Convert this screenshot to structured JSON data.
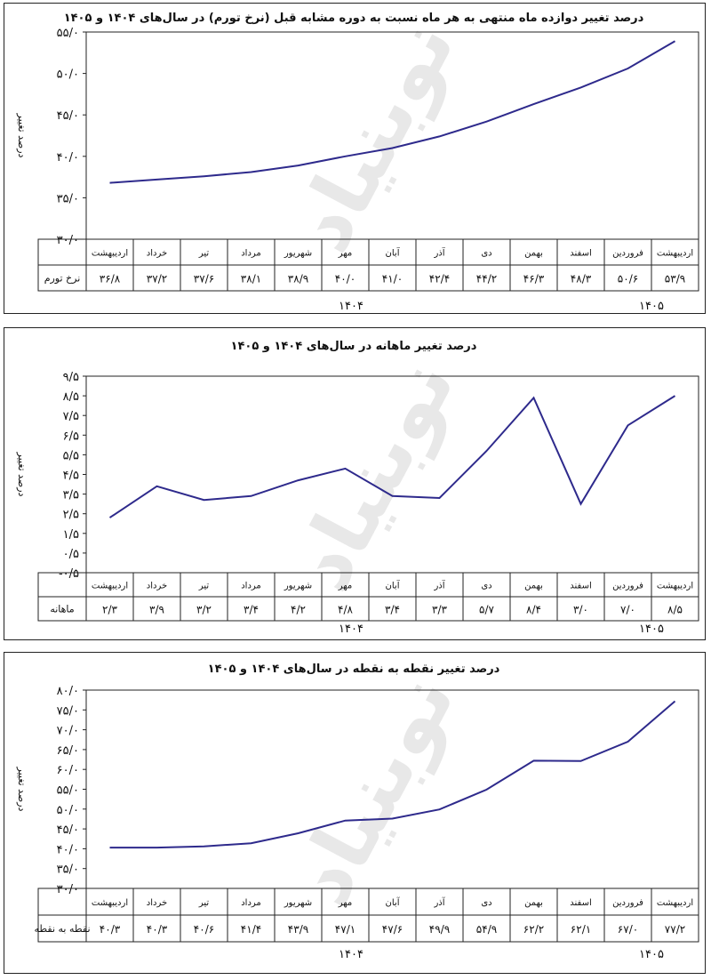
{
  "months": [
    "اردیبهشت",
    "خرداد",
    "تیر",
    "مرداد",
    "شهریور",
    "مهر",
    "آبان",
    "آذر",
    "دی",
    "بهمن",
    "اسفند",
    "فروردین",
    "اردیبهشت"
  ],
  "years": [
    "۱۴۰۴",
    "۱۴۰۵"
  ],
  "watermark": "نوبنیاد",
  "line_color": "#2e2a8c",
  "chart_data": [
    {
      "type": "line",
      "title": "درصد تغییر دوازده ماه منتهی به هر ماه نسبت به دوره مشابه قبل (نرخ تورم) در سال‌های ۱۴۰۴ و ۱۴۰۵",
      "ylabel": "درصد تغییر",
      "ylim": [
        30,
        55
      ],
      "yticks": [
        30,
        35,
        40,
        45,
        50,
        55
      ],
      "ytick_labels": [
        "۳۰/۰",
        "۳۵/۰",
        "۴۰/۰",
        "۴۵/۰",
        "۵۰/۰",
        "۵۵/۰"
      ],
      "series": [
        {
          "name": "نرخ تورم",
          "values": [
            36.8,
            37.2,
            37.6,
            38.1,
            38.9,
            40.0,
            41.0,
            42.4,
            44.2,
            46.3,
            48.3,
            50.6,
            53.9
          ],
          "labels": [
            "۳۶/۸",
            "۳۷/۲",
            "۳۷/۶",
            "۳۸/۱",
            "۳۸/۹",
            "۴۰/۰",
            "۴۱/۰",
            "۴۲/۴",
            "۴۴/۲",
            "۴۶/۳",
            "۴۸/۳",
            "۵۰/۶",
            "۵۳/۹"
          ]
        }
      ]
    },
    {
      "type": "line",
      "title": "درصد تغییر ماهانه در سال‌های ۱۴۰۴ و ۱۴۰۵",
      "ylabel": "درصد تغییر",
      "ylim": [
        -0.5,
        9.5
      ],
      "yticks": [
        -0.5,
        0.5,
        1.5,
        2.5,
        3.5,
        4.5,
        5.5,
        6.5,
        7.5,
        8.5,
        9.5
      ],
      "ytick_labels": [
        "-۰/۵",
        "۰/۵",
        "۱/۵",
        "۲/۵",
        "۳/۵",
        "۴/۵",
        "۵/۵",
        "۶/۵",
        "۷/۵",
        "۸/۵",
        "۹/۵"
      ],
      "series": [
        {
          "name": "ماهانه",
          "values": [
            2.3,
            3.9,
            3.2,
            3.4,
            4.2,
            4.8,
            3.4,
            3.3,
            5.7,
            8.4,
            3.0,
            7.0,
            8.5
          ],
          "labels": [
            "۲/۳",
            "۳/۹",
            "۳/۲",
            "۳/۴",
            "۴/۲",
            "۴/۸",
            "۳/۴",
            "۳/۳",
            "۵/۷",
            "۸/۴",
            "۳/۰",
            "۷/۰",
            "۸/۵"
          ]
        }
      ]
    },
    {
      "type": "line",
      "title": "درصد تغییر نقطه به نقطه در سال‌های ۱۴۰۴ و ۱۴۰۵",
      "ylabel": "درصد تغییر",
      "ylim": [
        30,
        80
      ],
      "yticks": [
        30,
        35,
        40,
        45,
        50,
        55,
        60,
        65,
        70,
        75,
        80
      ],
      "ytick_labels": [
        "۳۰/۰",
        "۳۵/۰",
        "۴۰/۰",
        "۴۵/۰",
        "۵۰/۰",
        "۵۵/۰",
        "۶۰/۰",
        "۶۵/۰",
        "۷۰/۰",
        "۷۵/۰",
        "۸۰/۰"
      ],
      "series": [
        {
          "name": "نقطه به نقطه",
          "values": [
            40.3,
            40.3,
            40.6,
            41.4,
            43.9,
            47.1,
            47.6,
            49.9,
            54.9,
            62.2,
            62.1,
            67.0,
            77.2
          ],
          "labels": [
            "۴۰/۳",
            "۴۰/۳",
            "۴۰/۶",
            "۴۱/۴",
            "۴۳/۹",
            "۴۷/۱",
            "۴۷/۶",
            "۴۹/۹",
            "۵۴/۹",
            "۶۲/۲",
            "۶۲/۱",
            "۶۷/۰",
            "۷۷/۲"
          ]
        }
      ]
    }
  ]
}
